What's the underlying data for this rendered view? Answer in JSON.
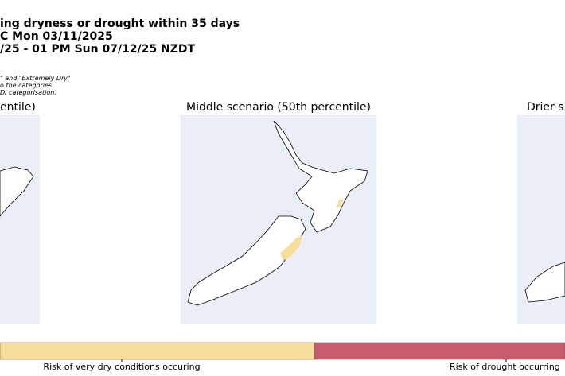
{
  "header": {
    "title_lines": [
      "ing dryness or drought within 35 days",
      "C Mon 03/11/2025",
      "/25 - 01 PM Sun 07/12/25 NZDT"
    ],
    "note_lines": [
      "\" and \"Extremely Dry\"",
      "o the categories",
      "DI categorisation."
    ]
  },
  "panels": [
    {
      "title": "entile)"
    },
    {
      "title": "Middle scenario (50th percentile)"
    },
    {
      "title": "Drier s"
    }
  ],
  "legend": {
    "labels": [
      "Risk of very dry conditions occuring",
      "Risk of drought occurring"
    ]
  }
}
